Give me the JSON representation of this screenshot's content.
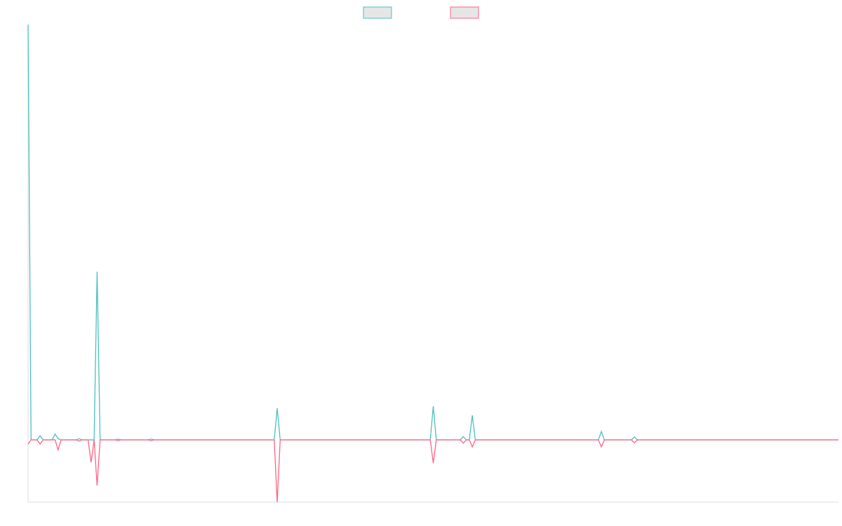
{
  "chart_data": {
    "type": "line",
    "x": [
      0,
      1,
      3,
      4,
      5,
      8,
      9,
      10,
      11,
      16,
      17,
      18,
      20,
      21,
      22,
      23,
      24,
      29,
      30,
      31,
      40,
      41,
      42,
      82,
      83,
      84,
      134,
      135,
      136,
      144,
      145,
      146,
      147,
      148,
      149,
      190,
      191,
      192,
      201,
      202,
      203,
      270
    ],
    "series": [
      {
        "color": "#4bc0c0",
        "values": [
          100,
          0,
          0,
          1,
          0,
          0,
          1.4,
          0.3,
          0,
          0,
          0.3,
          0,
          0,
          0,
          0,
          40.5,
          0,
          0,
          0.2,
          0,
          0,
          0.2,
          0,
          0,
          7.6,
          0,
          0,
          8.1,
          0,
          0,
          0.8,
          0,
          0,
          5.9,
          0,
          0,
          2,
          0,
          0,
          0.7,
          0,
          0
        ]
      },
      {
        "color": "#ff6384",
        "values": [
          -1,
          0,
          0,
          -1,
          0,
          0,
          0,
          -2.4,
          0,
          0,
          -0.3,
          0,
          0,
          -5.4,
          0,
          -11,
          0,
          0,
          -0.2,
          0,
          0,
          -0.2,
          0,
          0,
          -15,
          0,
          0,
          -5.6,
          0,
          0,
          -0.8,
          0,
          0,
          -1.7,
          0,
          0,
          -1.7,
          0,
          0,
          -0.7,
          0,
          0
        ]
      }
    ],
    "xlim": [
      0,
      270
    ],
    "ylim": [
      -15,
      100
    ],
    "legend": "top"
  }
}
